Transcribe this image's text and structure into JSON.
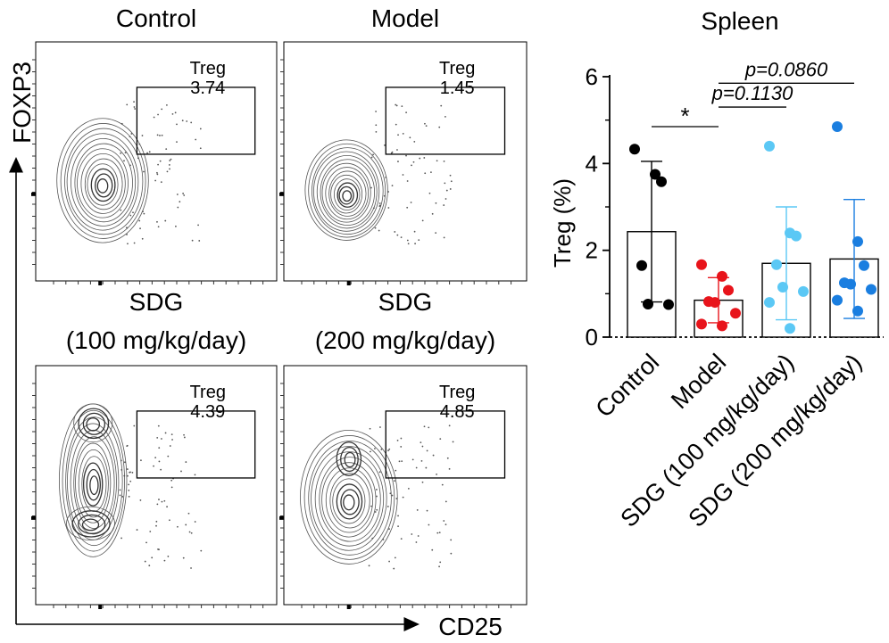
{
  "flow_panels": {
    "x_axis_label": "CD25",
    "y_axis_label": "FOXP3",
    "panels": [
      {
        "title_lines": [
          "Control"
        ],
        "gate_name": "Treg",
        "gate_value": "3.74"
      },
      {
        "title_lines": [
          "Model"
        ],
        "gate_name": "Treg",
        "gate_value": "1.45"
      },
      {
        "title_lines": [
          "SDG",
          "(100 mg/kg/day)"
        ],
        "gate_name": "Treg",
        "gate_value": "4.39"
      },
      {
        "title_lines": [
          "SDG",
          "(200 mg/kg/day)"
        ],
        "gate_name": "Treg",
        "gate_value": "4.85"
      }
    ]
  },
  "chart_data": {
    "type": "bar",
    "title": "Spleen",
    "xlabel": "",
    "ylabel": "Treg (%)",
    "ylim": [
      0,
      6
    ],
    "yticks": [
      0,
      2,
      4,
      6
    ],
    "categories": [
      "Control",
      "Model",
      "SDG (100 mg/kg/day)",
      "SDG (200 mg/kg/day)"
    ],
    "colors": [
      "#000000",
      "#e8141b",
      "#5bc8f5",
      "#1a7ee0"
    ],
    "means": [
      2.43,
      0.85,
      1.7,
      1.8
    ],
    "sd": [
      1.62,
      0.52,
      1.3,
      1.37
    ],
    "points": [
      [
        4.33,
        3.75,
        3.58,
        1.65,
        0.76,
        0.75
      ],
      [
        1.67,
        1.4,
        1.08,
        0.82,
        0.8,
        0.55,
        0.3,
        0.26
      ],
      [
        4.4,
        2.4,
        2.33,
        1.67,
        1.15,
        1.05,
        0.8,
        0.2
      ],
      [
        4.85,
        2.2,
        1.65,
        1.25,
        1.22,
        1.1,
        0.85,
        0.6
      ]
    ],
    "annotations": [
      {
        "from": 0,
        "to": 1,
        "label": "*",
        "y": 4.85
      },
      {
        "from": 1,
        "to": 2,
        "label": "p=0.1130",
        "y": 5.3
      },
      {
        "from": 1,
        "to": 3,
        "label": "p=0.0860",
        "y": 5.85
      }
    ]
  }
}
